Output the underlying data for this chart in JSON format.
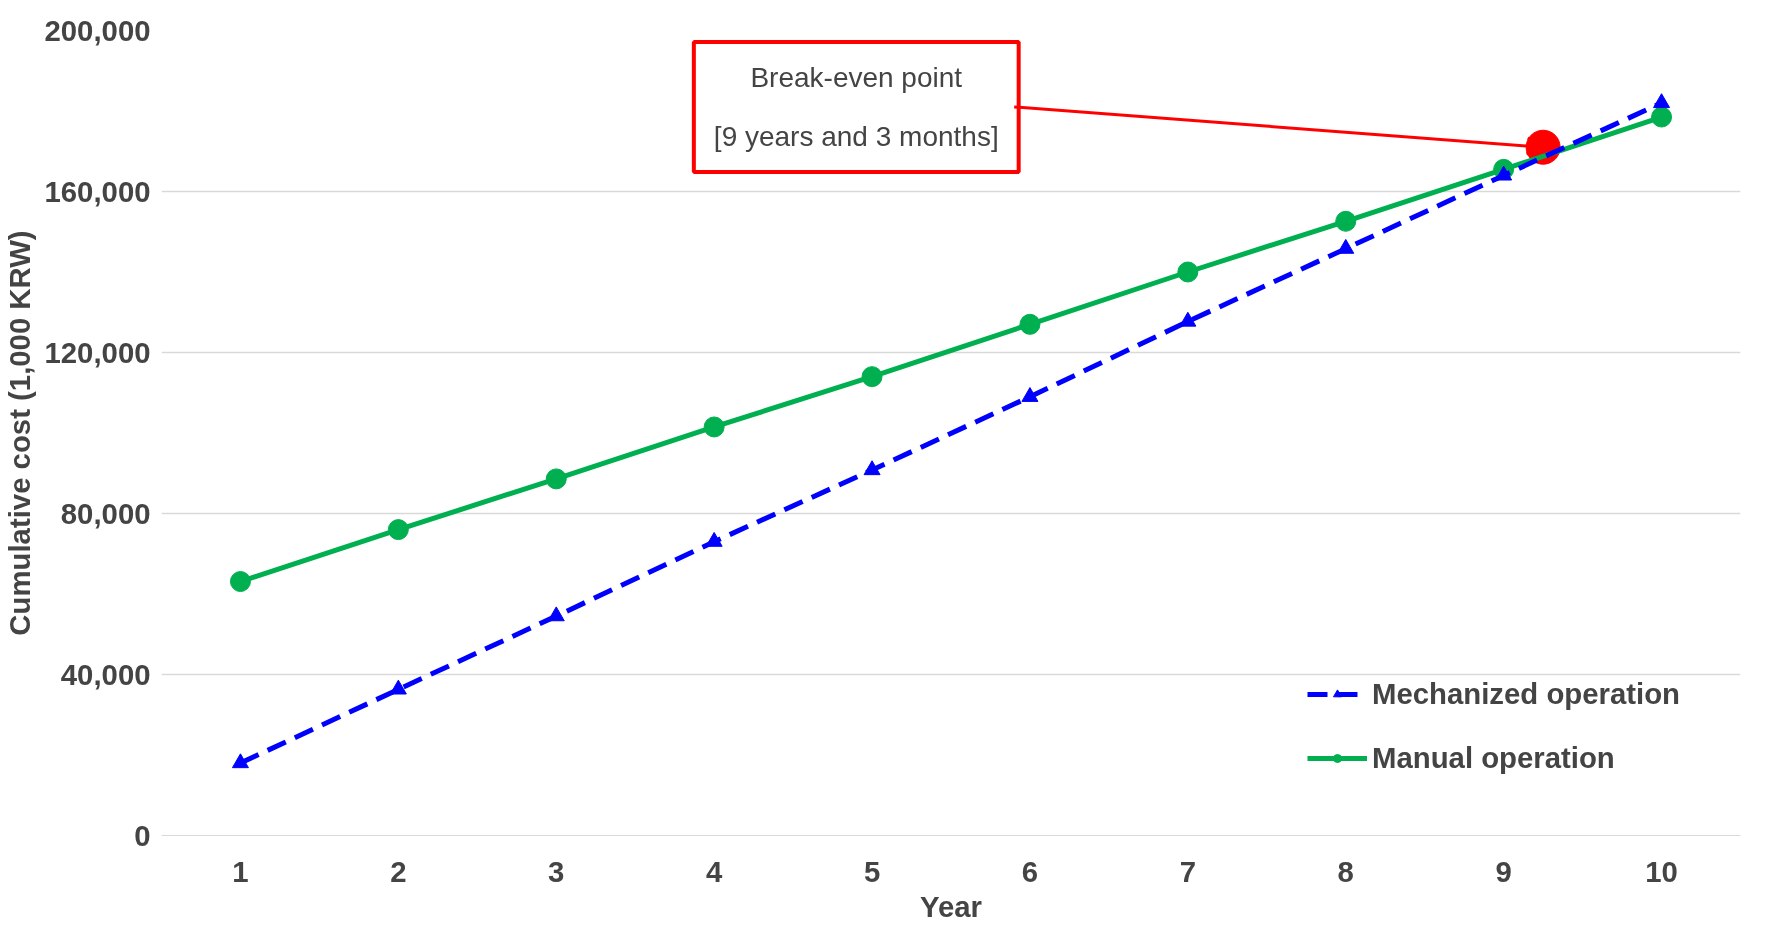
{
  "chart_data": {
    "type": "line",
    "xlabel": "Year",
    "ylabel": "Cumulative cost (1,000 KRW)",
    "x": [
      1,
      2,
      3,
      4,
      5,
      6,
      7,
      8,
      9,
      10
    ],
    "xlim": [
      0.5,
      10.5
    ],
    "xticks": [
      1,
      2,
      3,
      4,
      5,
      6,
      7,
      8,
      9,
      10
    ],
    "ylim": [
      0,
      200000
    ],
    "yticks": [
      {
        "value": 0,
        "label": "0"
      },
      {
        "value": 40000,
        "label": "40,000"
      },
      {
        "value": 80000,
        "label": "80,000"
      },
      {
        "value": 120000,
        "label": "120,000"
      },
      {
        "value": 160000,
        "label": "160,000"
      },
      {
        "value": 200000,
        "label": "200,000"
      }
    ],
    "grid": "y",
    "legend": "bottom right",
    "series": [
      {
        "name": "Mechanized operation",
        "color": "#0000ff",
        "marker": "triangle",
        "line_style": "dashed",
        "values": [
          18000,
          36300,
          54500,
          73000,
          90800,
          109000,
          127700,
          145800,
          164000,
          182000
        ]
      },
      {
        "name": "Manual operation",
        "color": "#00b050",
        "marker": "circle",
        "line_style": "solid",
        "values": [
          63100,
          76000,
          88600,
          101500,
          114000,
          127000,
          140000,
          152600,
          165500,
          178500
        ]
      },
      {
        "type": "scatter",
        "color": "#ff0000",
        "marker": "circle",
        "x": [
          9.25
        ],
        "values": [
          171000
        ]
      }
    ],
    "annotations": [
      {
        "text": "Break-even point\n[9 years and 3 months]",
        "x": 9.25,
        "y": 171000
      }
    ]
  }
}
